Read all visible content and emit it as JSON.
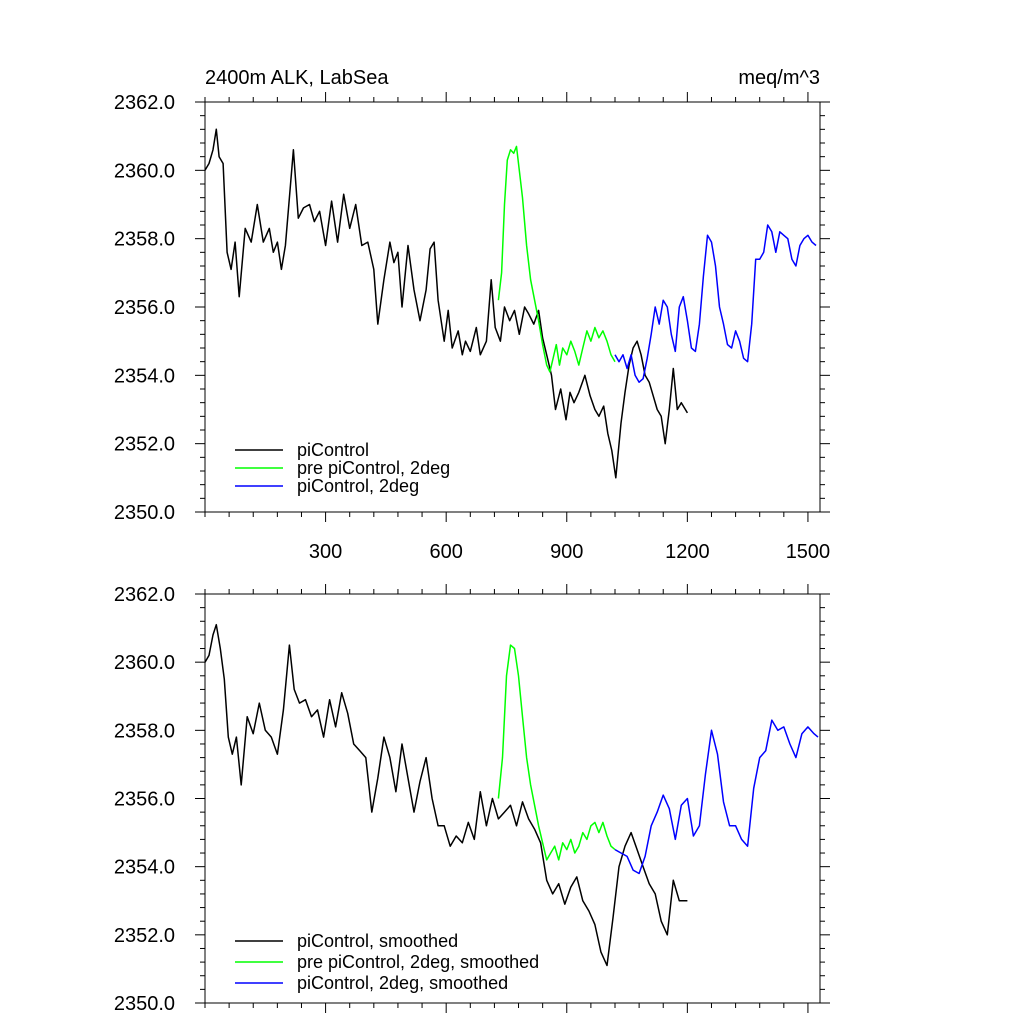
{
  "chart_data": [
    {
      "type": "line",
      "title": "2400m ALK, LabSea",
      "units": "meq/m^3",
      "xlim": [
        0,
        1530
      ],
      "ylim": [
        2350,
        2362
      ],
      "yticks": [
        "2350.0",
        "2352.0",
        "2354.0",
        "2356.0",
        "2358.0",
        "2360.0",
        "2362.0"
      ],
      "xticks": [
        "300",
        "600",
        "900",
        "1200",
        "1500"
      ],
      "legend_position": "bottom-left",
      "grid": false,
      "series": [
        {
          "name": "piControl",
          "color": "#000000",
          "x": [
            0,
            10,
            20,
            28,
            35,
            45,
            55,
            65,
            75,
            85,
            100,
            115,
            130,
            145,
            160,
            170,
            180,
            190,
            200,
            210,
            220,
            232,
            245,
            260,
            272,
            285,
            300,
            315,
            330,
            345,
            360,
            375,
            390,
            405,
            420,
            430,
            445,
            460,
            470,
            480,
            490,
            505,
            520,
            535,
            550,
            560,
            570,
            580,
            595,
            605,
            615,
            630,
            640,
            648,
            660,
            675,
            685,
            700,
            712,
            722,
            735,
            745,
            758,
            770,
            782,
            795,
            805,
            818,
            830,
            840,
            852,
            862,
            872,
            885,
            898,
            908,
            918,
            930,
            945,
            958,
            970,
            980,
            992,
            1002,
            1012,
            1022,
            1035,
            1045,
            1055,
            1065,
            1075,
            1085,
            1095,
            1105,
            1115,
            1125,
            1135,
            1145,
            1155,
            1165,
            1175,
            1185,
            1200
          ],
          "values": [
            2360.0,
            2360.2,
            2360.6,
            2361.2,
            2360.4,
            2360.2,
            2357.6,
            2357.1,
            2357.9,
            2356.3,
            2358.3,
            2357.9,
            2359.0,
            2357.9,
            2358.3,
            2357.6,
            2357.9,
            2357.1,
            2357.8,
            2359.2,
            2360.6,
            2358.6,
            2358.9,
            2359.0,
            2358.5,
            2358.8,
            2357.8,
            2359.1,
            2357.9,
            2359.3,
            2358.3,
            2359.0,
            2357.8,
            2357.9,
            2357.1,
            2355.5,
            2356.8,
            2357.9,
            2357.3,
            2357.6,
            2356.0,
            2357.8,
            2356.5,
            2355.6,
            2356.5,
            2357.7,
            2357.9,
            2356.2,
            2355.0,
            2355.9,
            2354.8,
            2355.3,
            2354.6,
            2355.0,
            2354.7,
            2355.4,
            2354.6,
            2355.0,
            2356.8,
            2355.4,
            2355.0,
            2356.0,
            2355.6,
            2355.9,
            2355.2,
            2356.0,
            2355.8,
            2355.5,
            2355.9,
            2355.1,
            2354.5,
            2354.0,
            2353.0,
            2353.6,
            2352.7,
            2353.5,
            2353.2,
            2353.5,
            2354.0,
            2353.4,
            2353.0,
            2352.8,
            2353.1,
            2352.3,
            2351.8,
            2351.0,
            2352.6,
            2353.5,
            2354.3,
            2354.8,
            2355.0,
            2354.6,
            2354.0,
            2353.8,
            2353.4,
            2353.0,
            2352.8,
            2352.0,
            2353.0,
            2354.2,
            2353.0,
            2353.2,
            2352.9
          ]
        },
        {
          "name": "pre piControl, 2deg",
          "color": "#00ff00",
          "x": [
            730,
            738,
            745,
            752,
            760,
            768,
            775,
            783,
            790,
            800,
            810,
            820,
            830,
            840,
            850,
            858,
            866,
            874,
            882,
            890,
            900,
            910,
            920,
            930,
            940,
            950,
            960,
            970,
            980,
            990,
            1000,
            1010,
            1020
          ],
          "values": [
            2356.2,
            2357.0,
            2359.0,
            2360.3,
            2360.6,
            2360.5,
            2360.7,
            2359.9,
            2359.2,
            2357.8,
            2356.8,
            2356.2,
            2355.6,
            2354.9,
            2354.3,
            2354.1,
            2354.5,
            2354.9,
            2354.3,
            2354.8,
            2354.6,
            2355.0,
            2354.7,
            2354.3,
            2354.8,
            2355.3,
            2355.0,
            2355.4,
            2355.1,
            2355.3,
            2355.0,
            2354.6,
            2354.4
          ]
        },
        {
          "name": "piControl, 2deg",
          "color": "#0000ff",
          "x": [
            1020,
            1030,
            1040,
            1050,
            1060,
            1070,
            1080,
            1090,
            1100,
            1110,
            1120,
            1130,
            1140,
            1150,
            1160,
            1170,
            1180,
            1190,
            1200,
            1210,
            1220,
            1230,
            1240,
            1250,
            1260,
            1270,
            1280,
            1290,
            1300,
            1310,
            1320,
            1330,
            1340,
            1350,
            1360,
            1370,
            1380,
            1390,
            1400,
            1410,
            1420,
            1430,
            1440,
            1450,
            1460,
            1470,
            1480,
            1490,
            1500,
            1510,
            1520
          ],
          "values": [
            2354.6,
            2354.4,
            2354.6,
            2354.2,
            2354.6,
            2354.0,
            2353.8,
            2353.9,
            2354.5,
            2355.2,
            2356.0,
            2355.5,
            2356.2,
            2356.0,
            2355.2,
            2354.7,
            2356.0,
            2356.3,
            2355.6,
            2354.8,
            2354.7,
            2355.5,
            2356.9,
            2358.1,
            2357.9,
            2357.2,
            2356.0,
            2355.5,
            2354.9,
            2354.8,
            2355.3,
            2355.0,
            2354.5,
            2354.4,
            2355.5,
            2357.4,
            2357.4,
            2357.6,
            2358.4,
            2358.2,
            2357.6,
            2358.2,
            2358.1,
            2358.0,
            2357.4,
            2357.2,
            2357.8,
            2358.0,
            2358.1,
            2357.9,
            2357.8
          ]
        }
      ]
    },
    {
      "type": "line",
      "xlim": [
        0,
        1530
      ],
      "ylim": [
        2350,
        2362
      ],
      "yticks": [
        "2350.0",
        "2352.0",
        "2354.0",
        "2356.0",
        "2358.0",
        "2360.0",
        "2362.0"
      ],
      "legend_position": "bottom-left",
      "grid": false,
      "series": [
        {
          "name": "piControl, smoothed",
          "color": "#000000",
          "x": [
            0,
            10,
            20,
            28,
            38,
            48,
            58,
            68,
            78,
            90,
            105,
            120,
            135,
            150,
            165,
            180,
            195,
            210,
            222,
            235,
            250,
            265,
            280,
            295,
            310,
            325,
            340,
            355,
            370,
            385,
            400,
            415,
            430,
            445,
            460,
            475,
            490,
            505,
            520,
            535,
            550,
            565,
            580,
            595,
            610,
            625,
            640,
            655,
            670,
            685,
            700,
            715,
            730,
            745,
            760,
            775,
            790,
            805,
            820,
            835,
            850,
            865,
            880,
            895,
            910,
            925,
            940,
            955,
            970,
            985,
            1000,
            1015,
            1030,
            1045,
            1060,
            1075,
            1090,
            1105,
            1120,
            1135,
            1150,
            1165,
            1180,
            1200
          ],
          "values": [
            2360.0,
            2360.2,
            2360.8,
            2361.1,
            2360.4,
            2359.5,
            2357.8,
            2357.3,
            2357.8,
            2356.4,
            2358.4,
            2357.9,
            2358.8,
            2358.0,
            2357.8,
            2357.3,
            2358.6,
            2360.5,
            2359.2,
            2358.8,
            2358.9,
            2358.4,
            2358.6,
            2357.8,
            2358.9,
            2358.1,
            2359.1,
            2358.5,
            2357.6,
            2357.4,
            2357.2,
            2355.6,
            2356.6,
            2357.8,
            2357.2,
            2356.2,
            2357.6,
            2356.6,
            2355.6,
            2356.5,
            2357.2,
            2356.0,
            2355.2,
            2355.2,
            2354.6,
            2354.9,
            2354.7,
            2355.3,
            2354.8,
            2356.2,
            2355.2,
            2356.0,
            2355.4,
            2355.6,
            2355.8,
            2355.2,
            2355.9,
            2355.4,
            2355.1,
            2354.7,
            2353.6,
            2353.2,
            2353.5,
            2352.9,
            2353.4,
            2353.7,
            2353.0,
            2352.7,
            2352.3,
            2351.5,
            2351.1,
            2352.5,
            2354.0,
            2354.6,
            2355.0,
            2354.5,
            2354.0,
            2353.5,
            2353.2,
            2352.4,
            2352.0,
            2353.6,
            2353.0,
            2353.0
          ]
        },
        {
          "name": "pre piControl, 2deg, smoothed",
          "color": "#00ff00",
          "x": [
            730,
            740,
            750,
            760,
            770,
            780,
            790,
            800,
            810,
            820,
            830,
            840,
            850,
            860,
            870,
            880,
            890,
            900,
            910,
            920,
            930,
            940,
            950,
            960,
            970,
            980,
            990,
            1000,
            1010,
            1020
          ],
          "values": [
            2356.0,
            2357.2,
            2359.6,
            2360.5,
            2360.4,
            2359.6,
            2358.4,
            2357.2,
            2356.4,
            2355.8,
            2355.2,
            2354.7,
            2354.2,
            2354.4,
            2354.6,
            2354.2,
            2354.7,
            2354.5,
            2354.8,
            2354.4,
            2354.6,
            2355.0,
            2354.8,
            2355.2,
            2355.3,
            2355.0,
            2355.3,
            2354.9,
            2354.6,
            2354.5
          ]
        },
        {
          "name": "piControl, 2deg, smoothed",
          "color": "#0000ff",
          "x": [
            1020,
            1035,
            1050,
            1065,
            1080,
            1095,
            1110,
            1125,
            1140,
            1155,
            1170,
            1185,
            1200,
            1215,
            1230,
            1245,
            1260,
            1275,
            1290,
            1305,
            1320,
            1335,
            1350,
            1365,
            1380,
            1395,
            1410,
            1425,
            1440,
            1455,
            1470,
            1485,
            1500,
            1515,
            1525
          ],
          "values": [
            2354.5,
            2354.4,
            2354.3,
            2353.9,
            2353.8,
            2354.3,
            2355.2,
            2355.6,
            2356.1,
            2355.7,
            2354.8,
            2355.8,
            2356.0,
            2354.9,
            2355.2,
            2356.7,
            2358.0,
            2357.3,
            2355.9,
            2355.2,
            2355.2,
            2354.8,
            2354.6,
            2356.3,
            2357.2,
            2357.4,
            2358.3,
            2358.0,
            2358.1,
            2357.6,
            2357.2,
            2357.9,
            2358.1,
            2357.9,
            2357.8
          ]
        }
      ]
    }
  ]
}
